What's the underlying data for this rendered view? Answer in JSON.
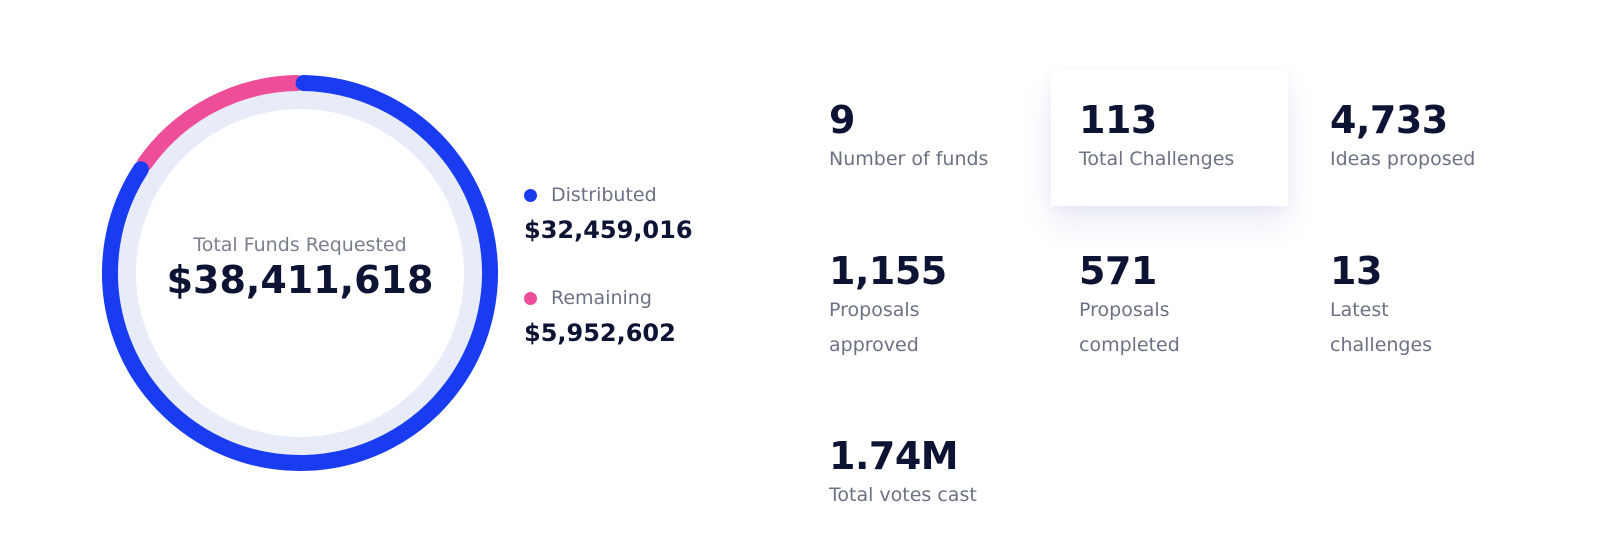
{
  "chart_data": {
    "type": "pie",
    "style": "donut",
    "center_label": "Total Funds Requested",
    "center_value": "$38,411,618",
    "total": 38411618,
    "series": [
      {
        "name": "Distributed",
        "value": 32459016,
        "value_label": "$32,459,016",
        "color": "#1a3cf0"
      },
      {
        "name": "Remaining",
        "value": 5952602,
        "value_label": "$5,952,602",
        "color": "#ee4d9a"
      }
    ],
    "track_color": "#e8ecf8",
    "legend_position": "right"
  },
  "stats": [
    {
      "value": "9",
      "label": "Number of funds"
    },
    {
      "value": "113",
      "label": "Total Challenges"
    },
    {
      "value": "4,733",
      "label": "Ideas proposed"
    },
    {
      "value": "1,155",
      "label": "Proposals approved"
    },
    {
      "value": "571",
      "label": "Proposals completed"
    },
    {
      "value": "13",
      "label": "Latest challenges"
    },
    {
      "value": "1.74M",
      "label": "Total votes cast"
    }
  ]
}
